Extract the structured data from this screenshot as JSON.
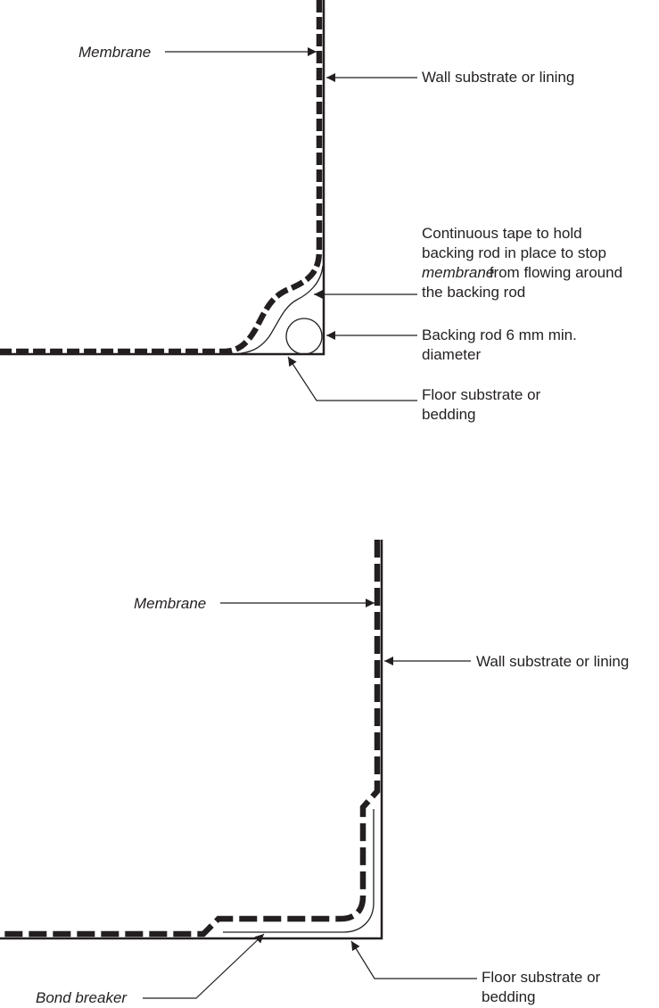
{
  "colors": {
    "ink": "#231f20",
    "background": "#ffffff"
  },
  "detail_top": {
    "membrane": "Membrane",
    "wall": "Wall substrate or lining",
    "tape_line1": "Continuous tape to hold",
    "tape_line2": "backing rod in place to stop",
    "tape_line3_italic": "membrane",
    "tape_line3_rest": " from flowing around",
    "tape_line4": "the backing rod",
    "rod": "Backing rod 6 mm min.\ndiameter",
    "floor": "Floor substrate or\nbedding"
  },
  "detail_bottom": {
    "membrane": "Membrane",
    "wall": "Wall substrate or lining",
    "bond_breaker": "Bond breaker",
    "floor": "Floor substrate or\nbedding"
  }
}
